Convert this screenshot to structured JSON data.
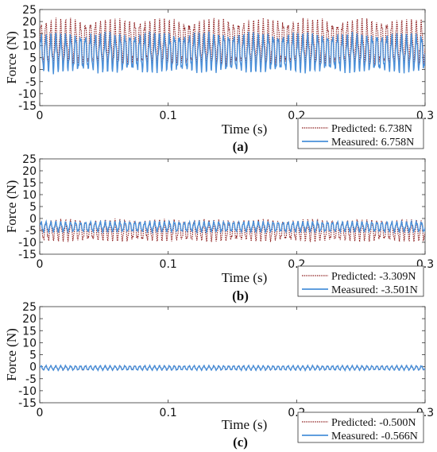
{
  "chart_data": [
    {
      "type": "line",
      "panel_label": "(a)",
      "xlabel": "Time (s)",
      "ylabel": "Force (N)",
      "xlim": [
        0,
        0.3
      ],
      "ylim": [
        -15,
        25
      ],
      "xticks": [
        0,
        0.1,
        0.2,
        0.3
      ],
      "xtick_labels": [
        "0",
        "0.1",
        "0.2",
        "0.3"
      ],
      "yticks": [
        -15,
        -10,
        -5,
        0,
        5,
        10,
        15,
        20,
        25
      ],
      "grid": false,
      "legend_position": "bottom-right",
      "series": [
        {
          "name": "Predicted: 6.738N",
          "color": "#8b1a1a",
          "line_style": "dotted",
          "mean": 6.738,
          "min": 0,
          "max": 22,
          "approx_frequency_hz": 260
        },
        {
          "name": "Measured: 6.758N",
          "color": "#4a90d9",
          "line_style": "solid",
          "mean": 6.758,
          "min": -2,
          "max": 16,
          "approx_frequency_hz": 260
        }
      ]
    },
    {
      "type": "line",
      "panel_label": "(b)",
      "xlabel": "Time (s)",
      "ylabel": "Force (N)",
      "xlim": [
        0,
        0.3
      ],
      "ylim": [
        -15,
        25
      ],
      "xticks": [
        0,
        0.1,
        0.2,
        0.3
      ],
      "xtick_labels": [
        "0",
        "0.1",
        "0.2",
        "0.3"
      ],
      "yticks": [
        -15,
        -10,
        -5,
        0,
        5,
        10,
        15,
        20,
        25
      ],
      "grid": false,
      "legend_position": "bottom-right",
      "series": [
        {
          "name": "Predicted: -3.309N",
          "color": "#8b1a1a",
          "line_style": "dotted",
          "mean": -3.309,
          "min": -10,
          "max": 0,
          "approx_frequency_hz": 260
        },
        {
          "name": "Measured: -3.501N",
          "color": "#4a90d9",
          "line_style": "solid",
          "mean": -3.501,
          "min": -6,
          "max": -1,
          "approx_frequency_hz": 260
        }
      ]
    },
    {
      "type": "line",
      "panel_label": "(c)",
      "xlabel": "Time (s)",
      "ylabel": "Force (N)",
      "xlim": [
        0,
        0.3
      ],
      "ylim": [
        -15,
        25
      ],
      "xticks": [
        0,
        0.1,
        0.2,
        0.3
      ],
      "xtick_labels": [
        "0",
        "0.1",
        "0.2",
        "0.3"
      ],
      "yticks": [
        -15,
        -10,
        -5,
        0,
        5,
        10,
        15,
        20,
        25
      ],
      "grid": false,
      "legend_position": "bottom-right",
      "series": [
        {
          "name": "Predicted: -0.500N",
          "color": "#8b1a1a",
          "line_style": "dotted",
          "mean": -0.5,
          "min": -1.5,
          "max": 0.5,
          "approx_frequency_hz": 260
        },
        {
          "name": "Measured: -0.566N",
          "color": "#4a90d9",
          "line_style": "solid",
          "mean": -0.566,
          "min": -1.6,
          "max": 0.6,
          "approx_frequency_hz": 260
        }
      ]
    }
  ]
}
